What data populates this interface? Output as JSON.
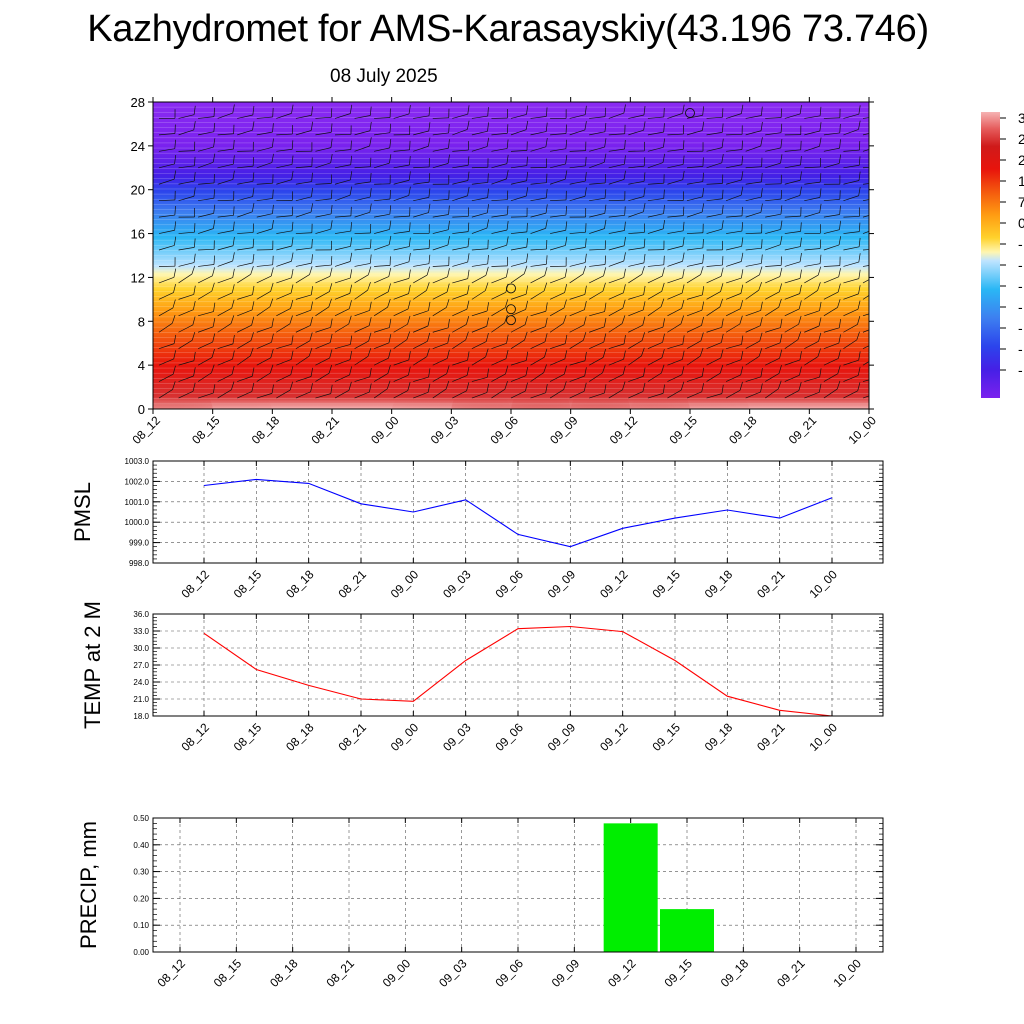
{
  "title": "Kazhydromet for AMS-Karasayskiy(43.196 73.746)",
  "date": "08 July 2025",
  "chart_data": [
    {
      "type": "heatmap",
      "x": [
        "08_12",
        "08_15",
        "08_18",
        "08_21",
        "09_00",
        "09_03",
        "09_06",
        "09_09",
        "09_12",
        "09_15",
        "09_18",
        "09_21",
        "10_00"
      ],
      "yticks": [
        0,
        4,
        8,
        12,
        16,
        20,
        24,
        28
      ],
      "ylim": [
        0,
        28
      ],
      "colorbar_ticks": [
        "3",
        "2",
        "2",
        "1",
        "7",
        "0",
        "-",
        "-",
        "-",
        "-",
        "-",
        "-",
        "-"
      ],
      "surface_values": [
        34,
        27,
        24,
        21,
        21,
        28,
        34,
        34,
        33,
        28,
        22,
        19,
        18
      ],
      "markers": [
        {
          "x": "09_06",
          "y": 8.1
        },
        {
          "x": "09_06",
          "y": 9.1
        },
        {
          "x": "09_06",
          "y": 11.0
        },
        {
          "x": "09_15",
          "y": 27.0
        }
      ],
      "colors": [
        "#7b22ee",
        "#4520e6",
        "#2c44ec",
        "#3d7ff0",
        "#2ab7f5",
        "#bfe4ff",
        "#fff6b0",
        "#ffd22c",
        "#ff9c12",
        "#f45a0e",
        "#e8140c",
        "#cf1a1a",
        "#e55a5a",
        "#f6b3b3"
      ]
    },
    {
      "type": "line",
      "ylabel": "PMSL",
      "x": [
        "08_12",
        "08_15",
        "08_18",
        "08_21",
        "09_00",
        "09_03",
        "09_06",
        "09_09",
        "09_12",
        "09_15",
        "09_18",
        "09_21",
        "10_00"
      ],
      "values": [
        1001.8,
        1002.1,
        1001.9,
        1000.9,
        1000.5,
        1001.1,
        999.4,
        998.8,
        999.7,
        1000.2,
        1000.6,
        1000.2,
        1001.2
      ],
      "ylim": [
        998.0,
        1003.0
      ],
      "yticks": [
        "998.0",
        "999.0",
        "1000.0",
        "1001.0",
        "1002.0",
        "1003.0"
      ],
      "color": "#0000ff"
    },
    {
      "type": "line",
      "ylabel": "TEMP at 2 M",
      "x": [
        "08_12",
        "08_15",
        "08_18",
        "08_21",
        "09_00",
        "09_03",
        "09_06",
        "09_09",
        "09_12",
        "09_15",
        "09_18",
        "09_21",
        "10_00"
      ],
      "values": [
        32.6,
        26.2,
        23.4,
        21.0,
        20.6,
        27.8,
        33.4,
        33.8,
        32.9,
        27.8,
        21.5,
        19.0,
        18.0
      ],
      "ylim": [
        18.0,
        36.0
      ],
      "yticks": [
        "18.0",
        "21.0",
        "24.0",
        "27.0",
        "30.0",
        "33.0",
        "36.0"
      ],
      "color": "#ff0000"
    },
    {
      "type": "bar",
      "ylabel": "PRECIP, mm",
      "x": [
        "08_12",
        "08_15",
        "08_18",
        "08_21",
        "09_00",
        "09_03",
        "09_06",
        "09_09",
        "09_12",
        "09_15",
        "09_18",
        "09_21",
        "10_00"
      ],
      "values": [
        0,
        0,
        0,
        0,
        0,
        0,
        0,
        0,
        0.48,
        0.16,
        0,
        0,
        0
      ],
      "ylim": [
        0,
        0.5
      ],
      "yticks": [
        "0.00",
        "0.10",
        "0.20",
        "0.30",
        "0.40",
        "0.50"
      ],
      "color": "#00ee00"
    }
  ]
}
